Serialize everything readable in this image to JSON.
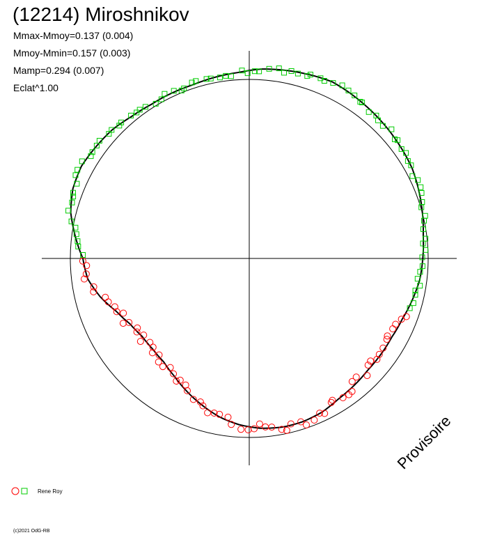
{
  "header": {
    "title": "(12214) Miroshnikov",
    "stats": [
      "Mmax-Mmoy=0.137 (0.004)",
      "Mmoy-Mmin=0.157 (0.003)",
      "Mamp=0.294 (0.007)",
      "Eclat^1.00"
    ]
  },
  "watermark": "Provisoire",
  "footer": {
    "copyright": "(c)2021 OdG-RB"
  },
  "colors": {
    "observer_1": "#ff0000",
    "observer_2": "#00cc00",
    "axis": "#000000",
    "curve": "#000000"
  },
  "chart_data": {
    "type": "scatter",
    "polar": true,
    "reference_circle": true,
    "legend_position": "bottom-left",
    "grid": false,
    "series": [
      {
        "name": "Rene Roy",
        "markers": [
          "circle",
          "square"
        ],
        "phase_ranges": [
          [
            0.0,
            0.45
          ],
          [
            0.45,
            1.0
          ]
        ]
      }
    ],
    "fit_radius": [
      [
        0.0,
        0.93
      ],
      [
        0.02,
        0.91
      ],
      [
        0.04,
        0.86
      ],
      [
        0.06,
        0.8
      ],
      [
        0.08,
        0.76
      ],
      [
        0.1,
        0.74
      ],
      [
        0.12,
        0.74
      ],
      [
        0.14,
        0.75
      ],
      [
        0.16,
        0.78
      ],
      [
        0.18,
        0.82
      ],
      [
        0.2,
        0.86
      ],
      [
        0.22,
        0.9
      ],
      [
        0.24,
        0.93
      ],
      [
        0.26,
        0.95
      ],
      [
        0.28,
        0.96
      ],
      [
        0.3,
        0.96
      ],
      [
        0.32,
        0.95
      ],
      [
        0.34,
        0.93
      ],
      [
        0.36,
        0.92
      ],
      [
        0.38,
        0.91
      ],
      [
        0.4,
        0.91
      ],
      [
        0.42,
        0.91
      ],
      [
        0.44,
        0.92
      ],
      [
        0.46,
        0.94
      ],
      [
        0.48,
        0.96
      ],
      [
        0.5,
        0.97
      ],
      [
        0.52,
        0.98
      ],
      [
        0.54,
        1.0
      ],
      [
        0.56,
        1.02
      ],
      [
        0.58,
        1.04
      ],
      [
        0.6,
        1.05
      ],
      [
        0.62,
        1.06
      ],
      [
        0.64,
        1.07
      ],
      [
        0.66,
        1.08
      ],
      [
        0.68,
        1.09
      ],
      [
        0.7,
        1.08
      ],
      [
        0.72,
        1.07
      ],
      [
        0.74,
        1.06
      ],
      [
        0.76,
        1.04
      ],
      [
        0.78,
        1.03
      ],
      [
        0.8,
        1.02
      ],
      [
        0.82,
        1.02
      ],
      [
        0.84,
        1.02
      ],
      [
        0.86,
        1.03
      ],
      [
        0.88,
        1.05
      ],
      [
        0.9,
        1.06
      ],
      [
        0.92,
        1.07
      ],
      [
        0.94,
        1.06
      ],
      [
        0.96,
        1.03
      ],
      [
        0.98,
        0.98
      ],
      [
        1.0,
        0.93
      ]
    ]
  }
}
